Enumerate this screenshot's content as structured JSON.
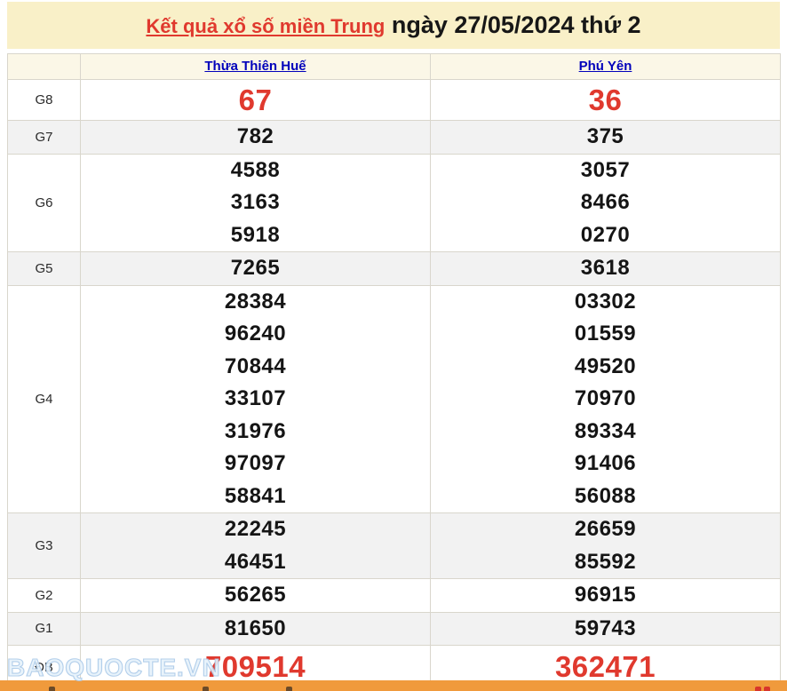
{
  "title": {
    "link": "Kết quả xổ số miền Trung",
    "rest": " ngày 27/05/2024 thứ 2"
  },
  "columns": [
    "Thừa Thiên Huế",
    "Phú Yên"
  ],
  "table": {
    "rows": [
      {
        "label": "G8",
        "style": "g8",
        "shaded": false,
        "hue": [
          "67"
        ],
        "phuyen": [
          "36"
        ]
      },
      {
        "label": "G7",
        "style": "normal",
        "shaded": true,
        "hue": [
          "782"
        ],
        "phuyen": [
          "375"
        ]
      },
      {
        "label": "G6",
        "style": "normal",
        "shaded": false,
        "hue": [
          "4588",
          "3163",
          "5918"
        ],
        "phuyen": [
          "3057",
          "8466",
          "0270"
        ]
      },
      {
        "label": "G5",
        "style": "normal",
        "shaded": true,
        "hue": [
          "7265"
        ],
        "phuyen": [
          "3618"
        ]
      },
      {
        "label": "G4",
        "style": "normal",
        "shaded": false,
        "hue": [
          "28384",
          "96240",
          "70844",
          "33107",
          "31976",
          "97097",
          "58841"
        ],
        "phuyen": [
          "03302",
          "01559",
          "49520",
          "70970",
          "89334",
          "91406",
          "56088"
        ]
      },
      {
        "label": "G3",
        "style": "normal",
        "shaded": true,
        "hue": [
          "22245",
          "46451"
        ],
        "phuyen": [
          "26659",
          "85592"
        ]
      },
      {
        "label": "G2",
        "style": "normal",
        "shaded": false,
        "hue": [
          "56265"
        ],
        "phuyen": [
          "96915"
        ]
      },
      {
        "label": "G1",
        "style": "normal",
        "shaded": true,
        "hue": [
          "81650"
        ],
        "phuyen": [
          "59743"
        ]
      },
      {
        "label": "ĐB",
        "style": "db",
        "shaded": false,
        "hue": [
          "709514"
        ],
        "phuyen": [
          "362471"
        ]
      }
    ]
  },
  "watermark": "BAOQUOCTE.VN",
  "colors": {
    "accent_red": "#E0392E",
    "link_blue": "#0000BB",
    "banner_bg": "#F9F0C8",
    "row_shade": "#F2F2F2",
    "header_bg": "#FBF7E7",
    "border": "#D9D6CC",
    "orange_bar": "#F09A3C"
  }
}
